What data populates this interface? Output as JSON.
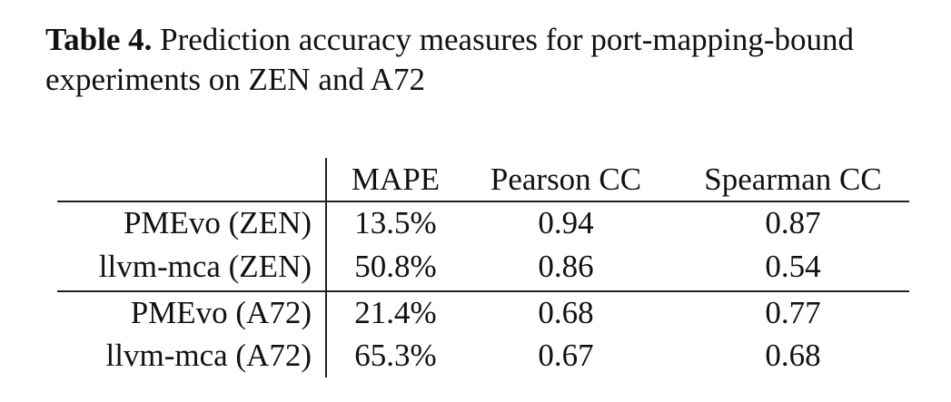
{
  "caption": {
    "label": "Table 4.",
    "text": "Prediction accuracy measures for port-mapping-bound experiments on ZEN and A72"
  },
  "table": {
    "headers": [
      "MAPE",
      "Pearson CC",
      "Spearman CC"
    ],
    "rows": [
      {
        "name": "PMEvo (ZEN)",
        "values": [
          "13.5%",
          "0.94",
          "0.87"
        ]
      },
      {
        "name": "llvm-mca (ZEN)",
        "values": [
          "50.8%",
          "0.86",
          "0.54"
        ]
      },
      {
        "name": "PMEvo (A72)",
        "values": [
          "21.4%",
          "0.68",
          "0.77"
        ]
      },
      {
        "name": "llvm-mca (A72)",
        "values": [
          "65.3%",
          "0.67",
          "0.68"
        ]
      }
    ]
  }
}
